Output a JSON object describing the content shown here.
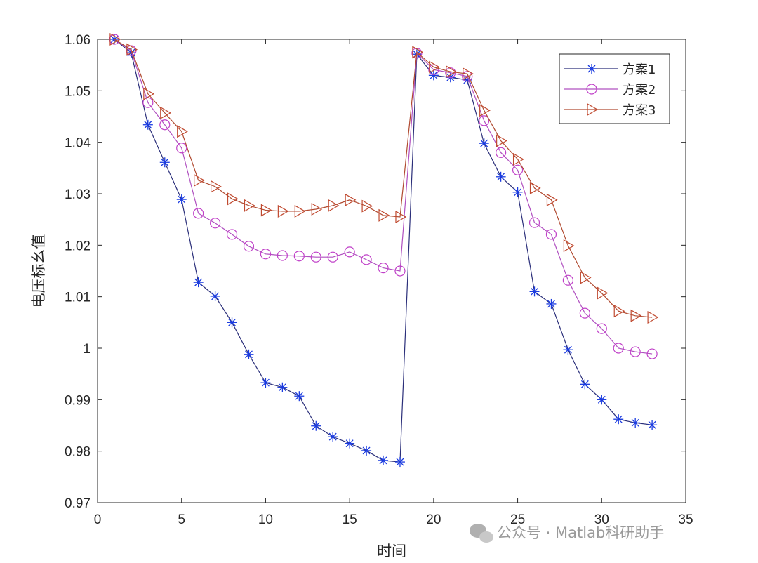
{
  "chart_data": {
    "type": "line",
    "title": "",
    "xlabel": "时间",
    "ylabel": "电压标幺值",
    "xlim": [
      0,
      35
    ],
    "ylim": [
      0.97,
      1.06
    ],
    "xticks": [
      "0",
      "5",
      "10",
      "15",
      "20",
      "25",
      "30",
      "35"
    ],
    "yticks": [
      "0.97",
      "0.98",
      "0.99",
      "1",
      "1.01",
      "1.02",
      "1.03",
      "1.04",
      "1.05",
      "1.06"
    ],
    "grid": false,
    "legend_position": "top-right",
    "x": [
      1,
      2,
      3,
      4,
      5,
      6,
      7,
      8,
      9,
      10,
      11,
      12,
      13,
      14,
      15,
      16,
      17,
      18,
      19,
      20,
      21,
      22,
      23,
      24,
      25,
      26,
      27,
      28,
      29,
      30,
      31,
      32,
      33
    ],
    "series": [
      {
        "name": "方案1",
        "marker": "asterisk",
        "line_color": "#2b2f7a",
        "marker_color": "#1a3be0",
        "values": [
          1.06,
          1.0574,
          1.0434,
          1.0361,
          1.0289,
          1.0128,
          1.0101,
          1.005,
          0.9988,
          0.9933,
          0.9924,
          0.9907,
          0.9849,
          0.9828,
          0.9815,
          0.9801,
          0.9782,
          0.9779,
          1.0571,
          1.053,
          1.0526,
          1.0521,
          1.0398,
          1.0333,
          1.0303,
          1.011,
          1.0086,
          0.9997,
          0.993,
          0.99,
          0.9862,
          0.9855,
          0.9851
        ]
      },
      {
        "name": "方案2",
        "marker": "circle",
        "line_color": "#b050c0",
        "marker_color": "#c040c8",
        "values": [
          1.06,
          1.0578,
          1.0477,
          1.0434,
          1.0389,
          1.0262,
          1.0243,
          1.0221,
          1.0198,
          1.0183,
          1.018,
          1.0179,
          1.0177,
          1.0177,
          1.0187,
          1.0172,
          1.0156,
          1.015,
          1.0573,
          1.0541,
          1.0535,
          1.0528,
          1.0442,
          1.038,
          1.0346,
          1.0244,
          1.0221,
          1.0132,
          1.0068,
          1.0038,
          1.0,
          0.9993,
          0.9989
        ]
      },
      {
        "name": "方案3",
        "marker": "triangle-right",
        "line_color": "#b04a30",
        "marker_color": "#c04a30",
        "values": [
          1.06,
          1.058,
          1.0494,
          1.0457,
          1.0421,
          1.0326,
          1.0314,
          1.029,
          1.0277,
          1.0268,
          1.0266,
          1.0266,
          1.027,
          1.0277,
          1.0288,
          1.0276,
          1.0258,
          1.0255,
          1.0575,
          1.0546,
          1.0537,
          1.0533,
          1.0462,
          1.0403,
          1.0367,
          1.0311,
          1.0288,
          1.0199,
          1.0137,
          1.0107,
          1.0072,
          1.0063,
          1.006
        ]
      }
    ]
  },
  "watermark": "公众号 · Matlab科研助手"
}
